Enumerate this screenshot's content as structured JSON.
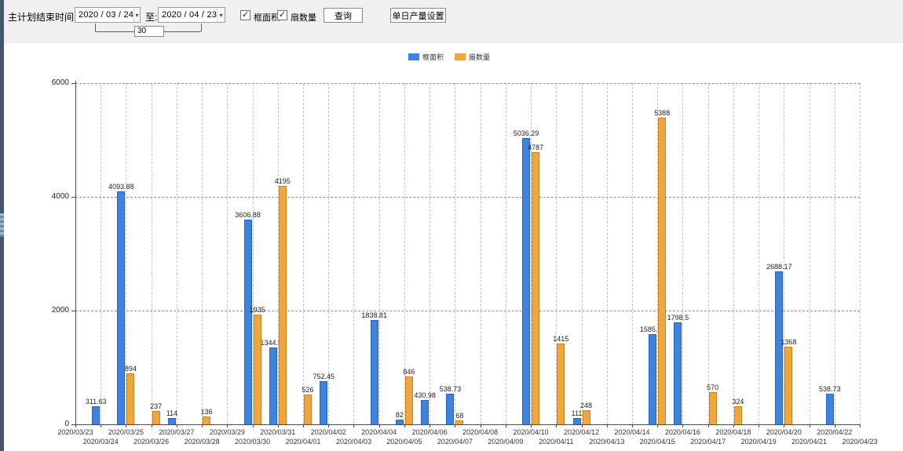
{
  "toolbar": {
    "plan_end_label": "主计划结束时间:",
    "date_from": "2020 / 03 / 24",
    "to_label": "至:",
    "date_to": "2020 / 04 / 23",
    "days_between": "30",
    "checkbox_frame_area_label": "框面积",
    "checkbox_fan_count_label": "扇数量",
    "checkbox_frame_area_checked": true,
    "checkbox_fan_count_checked": true,
    "query_button_label": "查询",
    "daily_output_button_label": "单日产量设置"
  },
  "icons": {
    "chevron_down": "▾",
    "check": "✓"
  },
  "legend": {
    "items": [
      {
        "label": "框面积",
        "color": "#3f83e0"
      },
      {
        "label": "扇数量",
        "color": "#f0a63c"
      }
    ]
  },
  "chart_data": {
    "type": "bar",
    "title": "",
    "xlabel": "",
    "ylabel": "",
    "ylim": [
      0,
      6000
    ],
    "yticks": [
      0,
      2000,
      4000,
      6000
    ],
    "grid": true,
    "legend_position": "top-center",
    "categories": [
      "2020/03/23",
      "2020/03/24",
      "2020/03/25",
      "2020/03/26",
      "2020/03/27",
      "2020/03/28",
      "2020/03/29",
      "2020/03/30",
      "2020/03/31",
      "2020/04/01",
      "2020/04/02",
      "2020/04/03",
      "2020/04/04",
      "2020/04/05",
      "2020/04/06",
      "2020/04/07",
      "2020/04/08",
      "2020/04/09",
      "2020/04/10",
      "2020/04/11",
      "2020/04/12",
      "2020/04/13",
      "2020/04/14",
      "2020/04/15",
      "2020/04/16",
      "2020/04/17",
      "2020/04/18",
      "2020/04/19",
      "2020/04/20",
      "2020/04/21",
      "2020/04/22",
      "2020/04/23"
    ],
    "series": [
      {
        "name": "框面积",
        "color": "#3f83e0",
        "border_color": "#2a62b8",
        "values": [
          null,
          311.63,
          4093.88,
          null,
          114,
          null,
          null,
          3606.88,
          1344.95,
          null,
          752.45,
          null,
          1838.81,
          82,
          430.98,
          538.73,
          null,
          null,
          5036.29,
          null,
          111,
          null,
          null,
          1585.96,
          1798.5,
          null,
          null,
          null,
          2688.17,
          null,
          538.73,
          null
        ]
      },
      {
        "name": "扇数量",
        "color": "#f0a63c",
        "border_color": "#c8851f",
        "values": [
          null,
          null,
          894,
          237,
          null,
          136,
          null,
          1935,
          4195,
          526,
          null,
          null,
          null,
          846,
          null,
          68,
          null,
          null,
          4787,
          1415,
          248,
          null,
          null,
          5388,
          null,
          570,
          324,
          null,
          1368,
          null,
          null,
          null
        ]
      }
    ]
  }
}
